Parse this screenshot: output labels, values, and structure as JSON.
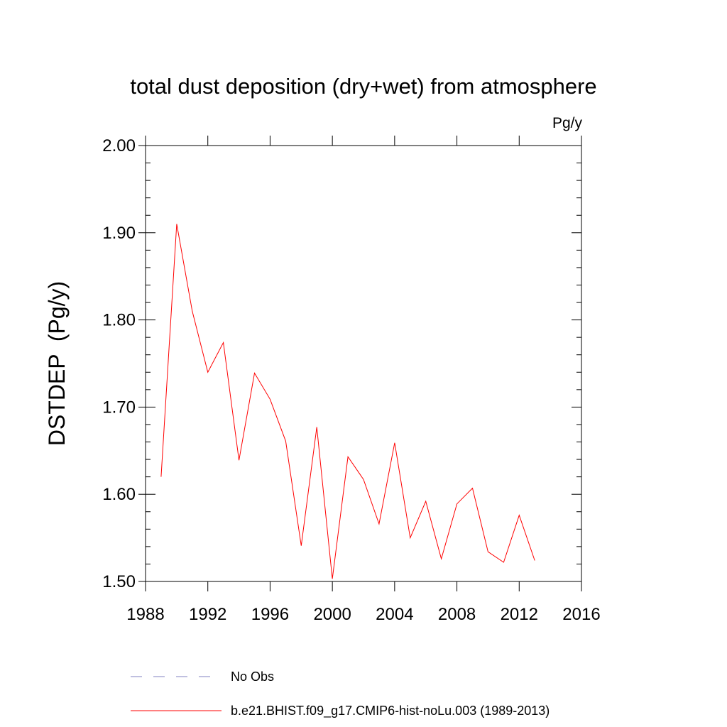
{
  "chart_data": {
    "type": "line",
    "title": "total dust deposition (dry+wet) from atmosphere",
    "units_label": "Pg/y",
    "ylabel": "DSTDEP  (Pg/y)",
    "xlabel": "",
    "xlim": [
      1988,
      2016
    ],
    "ylim": [
      1.5,
      2.0
    ],
    "x_ticks": [
      "1988",
      "1992",
      "1996",
      "2000",
      "2004",
      "2008",
      "2012",
      "2016"
    ],
    "y_ticks": [
      "1.50",
      "1.60",
      "1.70",
      "1.80",
      "1.90",
      "2.00"
    ],
    "grid": false,
    "legend_position": "bottom",
    "legend": [
      {
        "label": "No Obs",
        "color": "#8080c0",
        "style": "dashed"
      },
      {
        "label": "b.e21.BHIST.f09_g17.CMIP6-hist-noLu.003 (1989-2013)",
        "color": "#ff0000",
        "style": "solid"
      }
    ],
    "series": [
      {
        "name": "b.e21.BHIST.f09_g17.CMIP6-hist-noLu.003 (1989-2013)",
        "color": "#ff0000",
        "x": [
          1989,
          1990,
          1991,
          1992,
          1993,
          1994,
          1995,
          1996,
          1997,
          1998,
          1999,
          2000,
          2001,
          2002,
          2003,
          2004,
          2005,
          2006,
          2007,
          2008,
          2009,
          2010,
          2011,
          2012,
          2013
        ],
        "values": [
          1.62,
          1.91,
          1.81,
          1.74,
          1.774,
          1.639,
          1.739,
          1.709,
          1.661,
          1.541,
          1.677,
          1.503,
          1.643,
          1.617,
          1.566,
          1.659,
          1.55,
          1.592,
          1.526,
          1.589,
          1.607,
          1.534,
          1.522,
          1.576,
          1.524
        ]
      }
    ]
  }
}
